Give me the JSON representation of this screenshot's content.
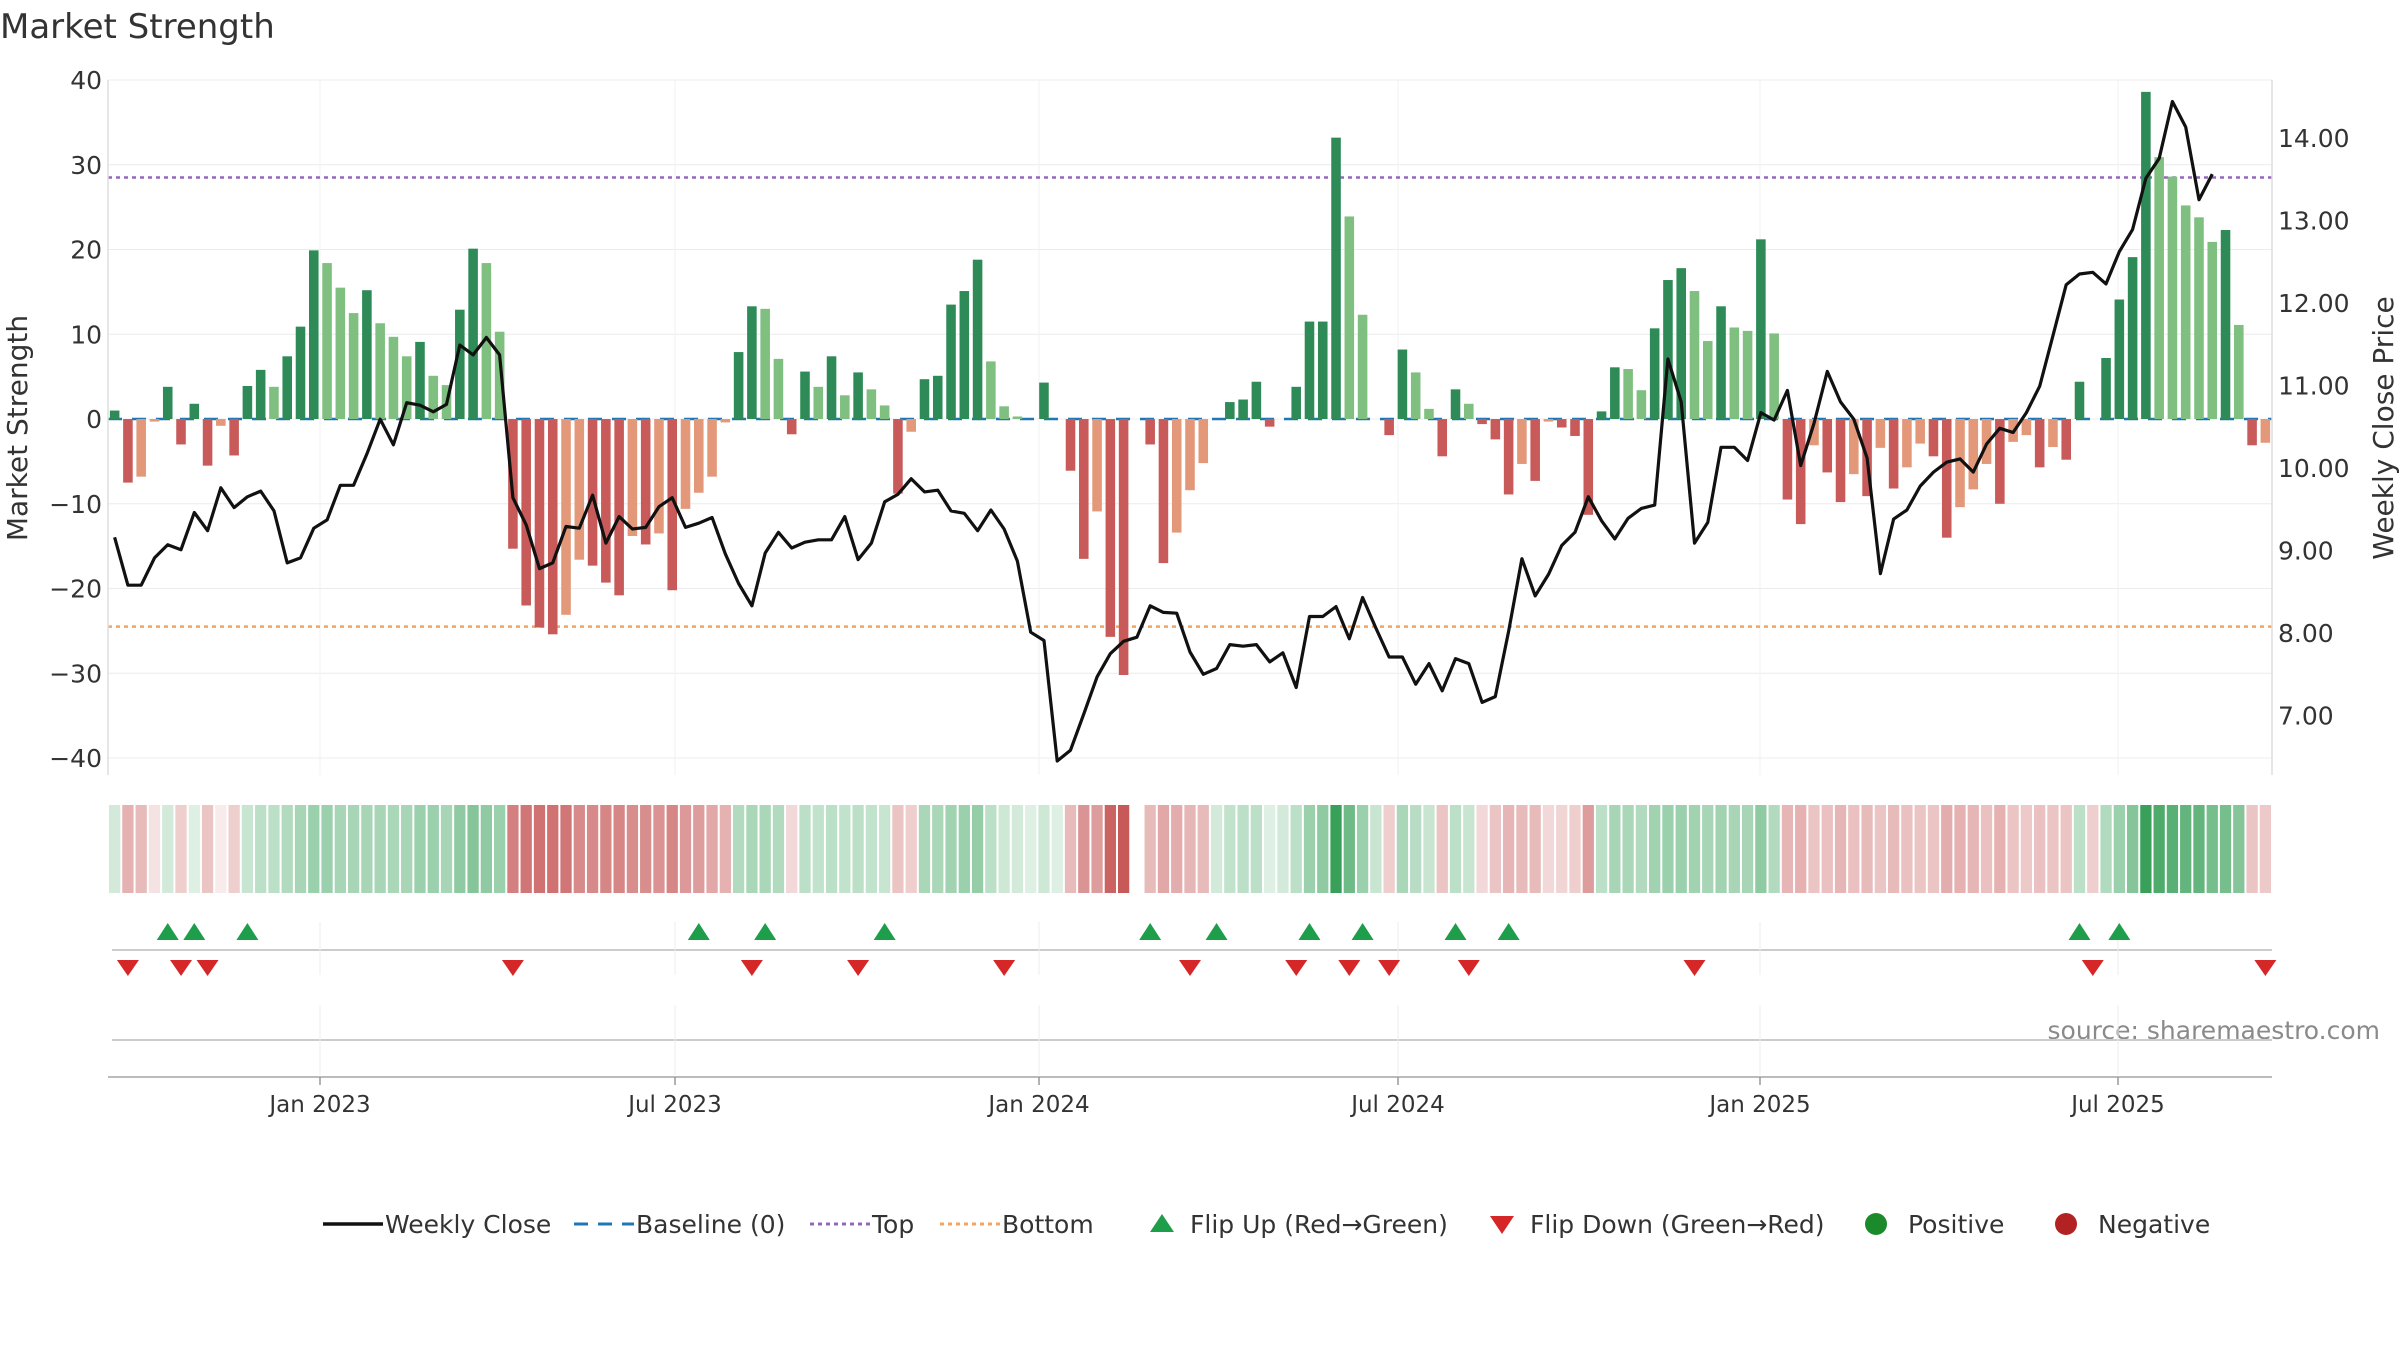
{
  "chart_data": {
    "type": "bar",
    "title": "Market Strength",
    "ylabel_left": "Market Strength",
    "ylabel_right": "Weekly Close Price",
    "source": "source: sharemaestro.com",
    "x_tick_labels": [
      "Jan 2023",
      "Jul 2023",
      "Jan 2024",
      "Jul 2024",
      "Jan 2025",
      "Jul 2025"
    ],
    "left_axis": {
      "ylim": [
        -42,
        40
      ],
      "ticks": [
        "40",
        "30",
        "20",
        "10",
        "0",
        "−10",
        "−20",
        "−30",
        "−40"
      ]
    },
    "right_axis": {
      "ylim": [
        6.28,
        14.7
      ],
      "ticks": [
        "14.00",
        "13.00",
        "12.00",
        "11.00",
        "10.00",
        "9.00",
        "8.00",
        "7.00"
      ]
    },
    "top_level": 28.5,
    "bottom_level": -24.5,
    "strength": [
      1,
      -7.5,
      -6.8,
      -0.3,
      3.8,
      -3,
      1.8,
      -5.5,
      -0.8,
      -4.3,
      3.9,
      5.8,
      3.8,
      7.4,
      10.9,
      19.9,
      18.4,
      15.5,
      12.5,
      15.2,
      11.3,
      9.7,
      7.4,
      9.1,
      5.1,
      4,
      12.9,
      20.1,
      18.4,
      10.3,
      -15.3,
      -22,
      -24.6,
      -25.4,
      -23.1,
      -16.6,
      -17.3,
      -19.3,
      -20.8,
      -13.8,
      -14.8,
      -13.5,
      -20.2,
      -10.6,
      -8.7,
      -6.8,
      -0.4,
      7.9,
      13.3,
      13,
      7.1,
      -1.8,
      5.6,
      3.8,
      7.4,
      2.8,
      5.5,
      3.5,
      1.6,
      -8.8,
      -1.5,
      4.7,
      5.1,
      13.5,
      15.1,
      18.8,
      6.8,
      1.5,
      0.3,
      0,
      4.3,
      0,
      -6.1,
      -16.5,
      -10.9,
      -25.7,
      -30.2,
      0,
      -3,
      -17,
      -13.4,
      -8.4,
      -5.2,
      0,
      2,
      2.3,
      4.4,
      -0.9,
      0,
      3.8,
      11.5,
      11.5,
      33.2,
      23.9,
      12.3,
      0,
      -1.9,
      8.2,
      5.5,
      1.2,
      -4.4,
      3.5,
      1.8,
      -0.6,
      -2.4,
      -8.9,
      -5.3,
      -7.3,
      -0.3,
      -1,
      -2,
      -11.3,
      0.9,
      6.1,
      5.9,
      3.4,
      10.7,
      16.4,
      17.8,
      15.1,
      9.2,
      13.3,
      10.8,
      10.4,
      21.2,
      10.1,
      -9.5,
      -12.4,
      -3.1,
      -6.3,
      -9.8,
      -6.5,
      -9.1,
      -3.4,
      -8.2,
      -5.7,
      -2.9,
      -4.4,
      -14,
      -10.4,
      -8.3,
      -5.3,
      -10,
      -2.7,
      -1.9,
      -5.7,
      -3.3,
      -4.8,
      4.4,
      0,
      7.2,
      14.1,
      19.1,
      38.6,
      30.9,
      28.6,
      25.2,
      23.8,
      20.9,
      22.3,
      11.1,
      -3.1,
      -2.8
    ],
    "weekly_close": [
      9.16,
      8.58,
      8.58,
      8.91,
      9.07,
      9.01,
      9.46,
      9.24,
      9.76,
      9.52,
      9.65,
      9.72,
      9.48,
      8.85,
      8.91,
      9.27,
      9.37,
      9.79,
      9.79,
      10.17,
      10.59,
      10.28,
      10.79,
      10.76,
      10.68,
      10.77,
      11.49,
      11.37,
      11.58,
      11.37,
      9.64,
      9.31,
      8.78,
      8.85,
      9.29,
      9.27,
      9.67,
      9.09,
      9.41,
      9.26,
      9.28,
      9.53,
      9.64,
      9.28,
      9.33,
      9.4,
      8.96,
      8.6,
      8.33,
      8.97,
      9.22,
      9.03,
      9.1,
      9.13,
      9.13,
      9.41,
      8.89,
      9.09,
      9.59,
      9.68,
      9.87,
      9.71,
      9.73,
      9.48,
      9.45,
      9.24,
      9.49,
      9.26,
      8.87,
      8.01,
      7.91,
      6.45,
      6.58,
      7.02,
      7.47,
      7.75,
      7.9,
      7.95,
      8.33,
      8.25,
      8.24,
      7.77,
      7.5,
      7.57,
      7.86,
      7.84,
      7.86,
      7.65,
      7.76,
      7.34,
      8.2,
      8.2,
      8.32,
      7.93,
      8.43,
      8.06,
      7.71,
      7.71,
      7.38,
      7.63,
      7.3,
      7.69,
      7.63,
      7.16,
      7.23,
      8.02,
      8.9,
      8.45,
      8.71,
      9.06,
      9.22,
      9.65,
      9.36,
      9.14,
      9.39,
      9.51,
      9.55,
      11.32,
      10.8,
      9.09,
      9.34,
      10.25,
      10.25,
      10.09,
      10.67,
      10.58,
      10.94,
      10.03,
      10.54,
      11.17,
      10.8,
      10.59,
      10.12,
      8.72,
      9.38,
      9.49,
      9.78,
      9.95,
      10.07,
      10.11,
      9.95,
      10.29,
      10.48,
      10.43,
      10.67,
      10.99,
      11.6,
      12.22,
      12.35,
      12.37,
      12.23,
      12.62,
      12.89,
      13.51,
      13.75,
      14.44,
      14.13,
      13.25,
      13.56
    ],
    "trend_intensity": [
      0.2,
      -0.4,
      -0.35,
      -0.15,
      0.2,
      -0.25,
      0.15,
      -0.3,
      -0.1,
      -0.25,
      0.25,
      0.3,
      0.3,
      0.35,
      0.4,
      0.45,
      0.45,
      0.4,
      0.4,
      0.4,
      0.4,
      0.38,
      0.4,
      0.45,
      0.45,
      0.4,
      0.5,
      0.55,
      0.5,
      0.45,
      -0.65,
      -0.7,
      -0.72,
      -0.72,
      -0.7,
      -0.6,
      -0.6,
      -0.62,
      -0.62,
      -0.58,
      -0.58,
      -0.56,
      -0.62,
      -0.52,
      -0.5,
      -0.45,
      -0.4,
      0.35,
      0.38,
      0.38,
      0.35,
      -0.2,
      0.3,
      0.28,
      0.3,
      0.28,
      0.3,
      0.28,
      0.25,
      -0.3,
      -0.25,
      0.38,
      0.38,
      0.42,
      0.45,
      0.48,
      0.3,
      0.22,
      0.2,
      0.15,
      0.22,
      0.15,
      -0.35,
      -0.55,
      -0.5,
      -0.8,
      -0.85,
      0,
      -0.35,
      -0.45,
      -0.42,
      -0.38,
      -0.35,
      0.2,
      0.28,
      0.3,
      0.3,
      0.15,
      0.2,
      0.3,
      0.45,
      0.5,
      0.9,
      0.65,
      0.45,
      0.25,
      -0.25,
      0.38,
      0.32,
      0.25,
      -0.3,
      0.3,
      0.25,
      -0.2,
      -0.3,
      -0.38,
      -0.35,
      -0.35,
      -0.2,
      -0.22,
      -0.25,
      -0.5,
      0.3,
      0.4,
      0.38,
      0.35,
      0.42,
      0.45,
      0.45,
      0.42,
      0.4,
      0.42,
      0.4,
      0.4,
      0.5,
      0.35,
      -0.38,
      -0.4,
      -0.3,
      -0.32,
      -0.38,
      -0.32,
      -0.35,
      -0.3,
      -0.35,
      -0.32,
      -0.3,
      -0.3,
      -0.42,
      -0.4,
      -0.38,
      -0.32,
      -0.4,
      -0.3,
      -0.28,
      -0.32,
      -0.3,
      -0.3,
      0.3,
      -0.25,
      0.35,
      0.45,
      0.55,
      0.9,
      0.8,
      0.75,
      0.7,
      0.7,
      0.62,
      0.62,
      0.55,
      -0.3,
      -0.28
    ],
    "flip_up_weeks": [
      4,
      6,
      10,
      44,
      49,
      58,
      78,
      83,
      90,
      94,
      101,
      105,
      148,
      151
    ],
    "flip_down_weeks": [
      1,
      5,
      7,
      30,
      48,
      56,
      67,
      81,
      89,
      93,
      96,
      102,
      119,
      149,
      162
    ],
    "colors": {
      "pos_strong": "#2e8b57",
      "pos_weak": "#7fbf7f",
      "neg_strong": "#c85a5a",
      "neg_weak": "#e3987a",
      "close_line": "#111111",
      "baseline": "#1f77b4",
      "top_line": "#9467bd",
      "bottom_line": "#f4a460",
      "flip_up": "#1e9e4a",
      "flip_down": "#d62728",
      "positive_dot": "#1a8a2a",
      "negative_dot": "#b22222"
    },
    "legend": [
      {
        "label": "Weekly Close",
        "kind": "line"
      },
      {
        "label": "Baseline (0)",
        "kind": "dash"
      },
      {
        "label": "Top",
        "kind": "dot-purple"
      },
      {
        "label": "Bottom",
        "kind": "dot-orange"
      },
      {
        "label": "Flip Up (Red→Green)",
        "kind": "tri-up"
      },
      {
        "label": "Flip Down (Green→Red)",
        "kind": "tri-down"
      },
      {
        "label": "Positive",
        "kind": "dot-pos"
      },
      {
        "label": "Negative",
        "kind": "dot-neg"
      }
    ]
  }
}
